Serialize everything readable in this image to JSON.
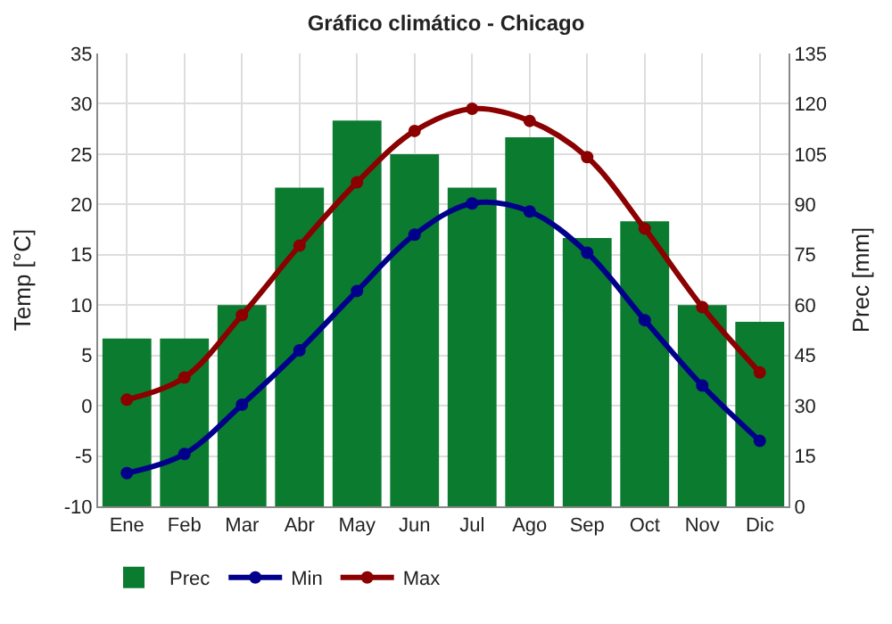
{
  "chart_data": {
    "type": "line",
    "title": "Gráfico climático - Chicago",
    "ylabel": "Temp [°C]",
    "y2label": "Prec [mm]",
    "categories": [
      "Ene",
      "Feb",
      "Mar",
      "Abr",
      "May",
      "Jun",
      "Jul",
      "Ago",
      "Sep",
      "Oct",
      "Nov",
      "Dic"
    ],
    "series": [
      {
        "name": "Prec",
        "type": "bar",
        "axis": "y2",
        "color": "#0a7b2f",
        "values": [
          50,
          50,
          60,
          95,
          115,
          105,
          95,
          110,
          80,
          85,
          60,
          55
        ]
      },
      {
        "name": "Min",
        "color": "#00008b",
        "values": [
          -6.7,
          -4.8,
          0.1,
          5.5,
          11.4,
          17,
          20.1,
          19.3,
          15.2,
          8.5,
          2,
          -3.5
        ]
      },
      {
        "name": "Max",
        "color": "#8b0000",
        "values": [
          0.6,
          2.8,
          9,
          15.9,
          22.2,
          27.3,
          29.5,
          28.3,
          24.7,
          17.6,
          9.8,
          3.3
        ]
      }
    ],
    "ylim": [
      -10,
      35
    ],
    "yticks": [
      -10,
      -5,
      0,
      5,
      10,
      15,
      20,
      25,
      30,
      35
    ],
    "y2lim": [
      0,
      135
    ],
    "y2ticks": [
      0,
      15,
      30,
      45,
      60,
      75,
      90,
      105,
      120,
      135
    ],
    "grid": true,
    "legend": "bottom left",
    "marker": "circle",
    "line_style": "solid"
  }
}
